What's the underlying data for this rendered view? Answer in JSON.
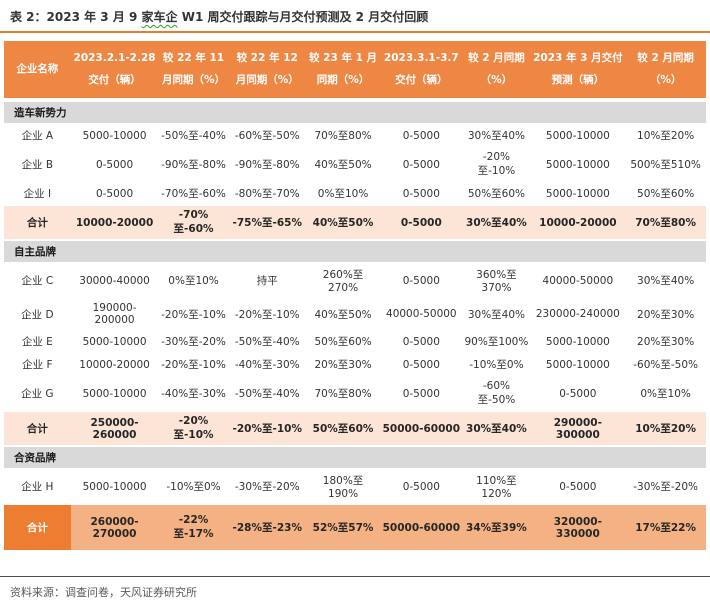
{
  "title": {
    "prefix": "表 2：",
    "part1": "2023 年 3 月 9 ",
    "highlighted": "家车企",
    "part2": " W1 周交付跟踪与月交付预测及 2 月交付回顾"
  },
  "table": {
    "headers": [
      "企业名称",
      "2023.2.1-2.28 交付（辆）",
      "较 22 年 11 月同期（%）",
      "较 22 年 12 月同期（%）",
      "较 23 年 1 月同期（%）",
      "2023.3.1-3.7 交付（辆）",
      "较 2 月同期（%）",
      "2023 年 3 月交付预测（辆）",
      "较 2 月同期（%）"
    ],
    "sections": [
      {
        "name": "造车新势力",
        "rows": [
          {
            "cells": [
              "企业 A",
              "5000-10000",
              "-50%至-40%",
              "-60%至-50%",
              "70%至80%",
              "0-5000",
              "30%至40%",
              "5000-10000",
              "10%至20%"
            ]
          },
          {
            "cells": [
              "企业 B",
              "0-5000",
              "-90%至-80%",
              "-90%至-80%",
              "40%至50%",
              "0-5000",
              "-20%至-10%",
              "5000-10000",
              "500%至510%"
            ]
          },
          {
            "cells": [
              "企业 I",
              "0-5000",
              "-70%至-60%",
              "-80%至-70%",
              "0%至10%",
              "0-5000",
              "50%至60%",
              "5000-10000",
              "50%至60%"
            ]
          }
        ],
        "subtotal": {
          "cells": [
            "合计",
            "10000-20000",
            "-70%至-60%",
            "-75%至-65%",
            "40%至50%",
            "0-5000",
            "30%至40%",
            "10000-20000",
            "70%至80%"
          ]
        }
      },
      {
        "name": "自主品牌",
        "rows": [
          {
            "cells": [
              "企业 C",
              "30000-40000",
              "0%至10%",
              "持平",
              "260%至270%",
              "0-5000",
              "360%至370%",
              "40000-50000",
              "30%至40%"
            ]
          },
          {
            "cells": [
              "企业 D",
              "190000-200000",
              "-20%至-10%",
              "-20%至-10%",
              "40%至50%",
              "40000-50000",
              "30%至40%",
              "230000-240000",
              "20%至30%"
            ]
          },
          {
            "cells": [
              "企业 E",
              "5000-10000",
              "-30%至-20%",
              "-50%至-40%",
              "50%至60%",
              "0-5000",
              "90%至100%",
              "5000-10000",
              "20%至30%"
            ]
          },
          {
            "cells": [
              "企业 F",
              "10000-20000",
              "-20%至-10%",
              "-40%至-30%",
              "20%至30%",
              "0-5000",
              "-10%至0%",
              "5000-10000",
              "-60%至-50%"
            ]
          },
          {
            "cells": [
              "企业 G",
              "5000-10000",
              "-40%至-30%",
              "-50%至-40%",
              "70%至80%",
              "0-5000",
              "-60%至-50%",
              "0-5000",
              "0%至10%"
            ]
          }
        ],
        "subtotal": {
          "cells": [
            "合计",
            "250000-260000",
            "-20%至-10%",
            "-20%至-10%",
            "50%至60%",
            "50000-60000",
            "30%至40%",
            "290000-300000",
            "10%至20%"
          ]
        }
      },
      {
        "name": "合资品牌",
        "rows": [
          {
            "cells": [
              "企业 H",
              "5000-10000",
              "-10%至0%",
              "-30%至-20%",
              "180%至190%",
              "0-5000",
              "110%至120%",
              "0-5000",
              "-30%至-20%"
            ]
          }
        ]
      }
    ],
    "grand_total": {
      "cells": [
        "合计",
        "260000-270000",
        "-22%至-17%",
        "-28%至-23%",
        "52%至57%",
        "50000-60000",
        "34%至39%",
        "320000-330000",
        "17%至22%"
      ]
    }
  },
  "footer": {
    "source": "资料来源：调查问卷，天风证券研究所"
  },
  "colors": {
    "accent_orange": "#ed7d31",
    "header_bg": "#ee8644",
    "subtotal_bg": "#fce4d6",
    "grand_total_bg": "#f4b183",
    "section_bg": "#d9d9d9",
    "title_rule": "#e87c28",
    "spellcheck_squiggle": "#2ca02c"
  }
}
